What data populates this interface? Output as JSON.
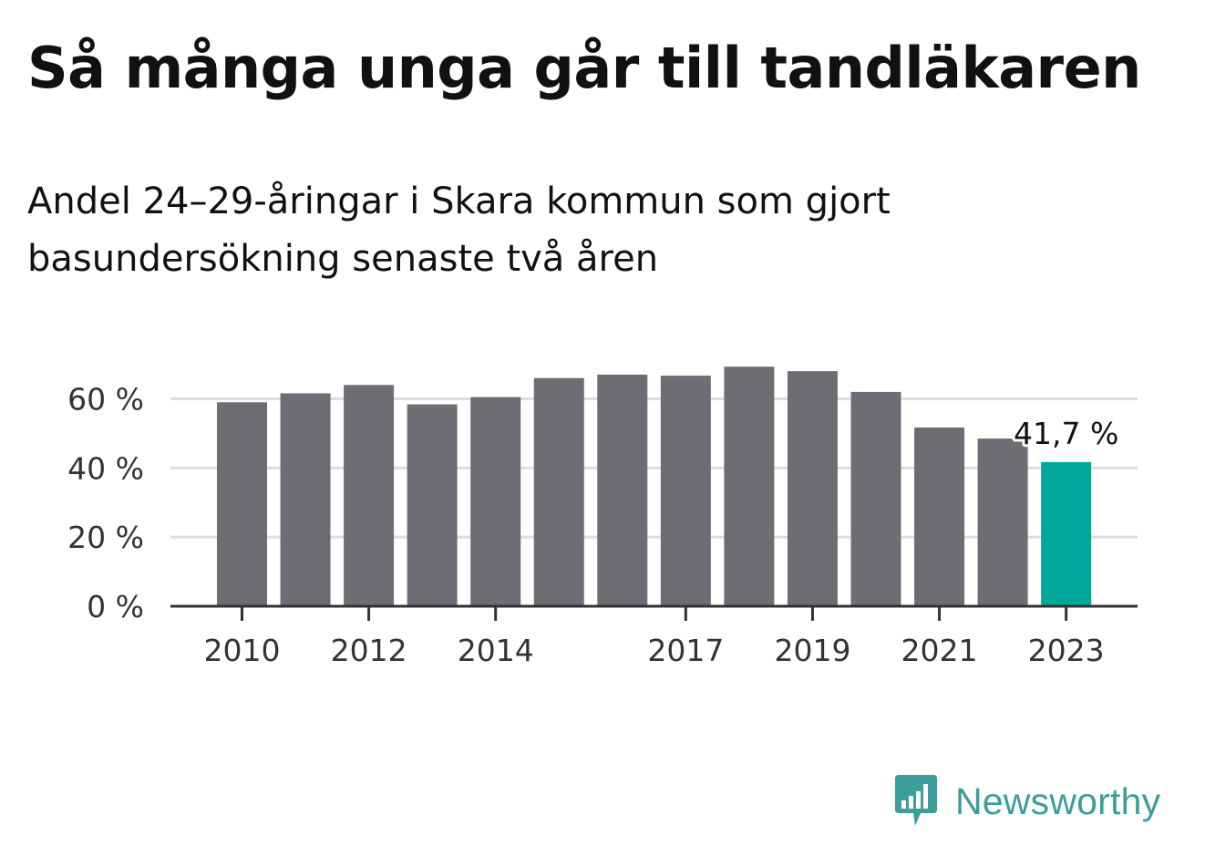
{
  "title": "Så många unga går till tandläkaren",
  "subtitle": "Andel 24–29-åringar i Skara kommun som gjort basundersökning senaste två åren",
  "brand": {
    "name": "Newsworthy",
    "color": "#3a9f9b"
  },
  "colors": {
    "bar": "#6e6d73",
    "highlight": "#00a89b",
    "grid": "#dddddd",
    "axis": "#333333"
  },
  "chart_data": {
    "type": "bar",
    "title": "Så många unga går till tandläkaren",
    "subtitle": "Andel 24–29-åringar i Skara kommun som gjort basundersökning senaste två åren",
    "categories": [
      "2010",
      "2011",
      "2012",
      "2013",
      "2014",
      "2015",
      "2016",
      "2017",
      "2018",
      "2019",
      "2020",
      "2021",
      "2022",
      "2023"
    ],
    "values": [
      59,
      61.6,
      64,
      58.4,
      60.5,
      66,
      67,
      66.7,
      69.3,
      68,
      62,
      51.7,
      48.5,
      41.7
    ],
    "x_tick_labels": [
      "2010",
      "2012",
      "2014",
      "2017",
      "2019",
      "2021",
      "2023"
    ],
    "y_ticks": [
      0,
      20,
      40,
      60
    ],
    "y_tick_labels": [
      "0 %",
      "20 %",
      "40 %",
      "60 %"
    ],
    "ylim": [
      0,
      72
    ],
    "highlight_index": 13,
    "highlight_label": "41,7 %",
    "grid": true,
    "xlabel": "",
    "ylabel": ""
  }
}
